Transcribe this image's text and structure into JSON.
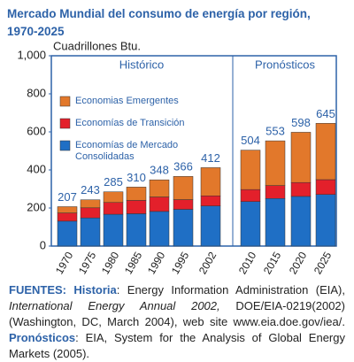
{
  "chart_data": {
    "type": "stacked-bar",
    "title": [
      "Mercado Mundial del consumo de energía por región,",
      "1970-2025"
    ],
    "y_axis_label": "Cuadrillones Btu.",
    "section_labels": [
      "Histórico",
      "Pronósticos"
    ],
    "categories": [
      "1970",
      "1975",
      "1980",
      "1985",
      "1990",
      "1995",
      "2002",
      "2010",
      "2015",
      "2020",
      "2025"
    ],
    "series": [
      {
        "name": "Economías de Mercado Consolidadas",
        "color": "#1f6fc5",
        "values": [
          131,
          148,
          167,
          170,
          182,
          193,
          211,
          234,
          250,
          261,
          271
        ]
      },
      {
        "name": "Economías de Transición",
        "color": "#e3202b",
        "values": [
          43,
          53,
          62,
          70,
          76,
          51,
          53,
          63,
          68,
          73,
          78
        ]
      },
      {
        "name": "Economias Emergentes",
        "color": "#e2782b",
        "values": [
          33,
          42,
          56,
          70,
          90,
          122,
          148,
          207,
          235,
          264,
          296
        ]
      }
    ],
    "totals": [
      207,
      243,
      285,
      310,
      348,
      366,
      412,
      504,
      553,
      598,
      645
    ],
    "ylim": [
      0,
      1000
    ],
    "yticks": [
      0,
      200,
      400,
      600,
      800,
      {
        "value": 1000,
        "label": "1,000"
      }
    ]
  },
  "footer": {
    "sources_label": "FUENTES:",
    "historic_label": "Historia",
    "historic_text": ": Energy Information Administration (EIA),",
    "historic_italic": "International Energy Annual 2002,",
    "historic_text2": "DOE/EIA-0219(2002) (Washington, DC, March 2004), web site www.eia.doe.gov/iea/.",
    "forecast_label": "Pronósticos",
    "forecast_text": ": EIA, System for the Analysis of Global Energy Markets (2005)."
  }
}
